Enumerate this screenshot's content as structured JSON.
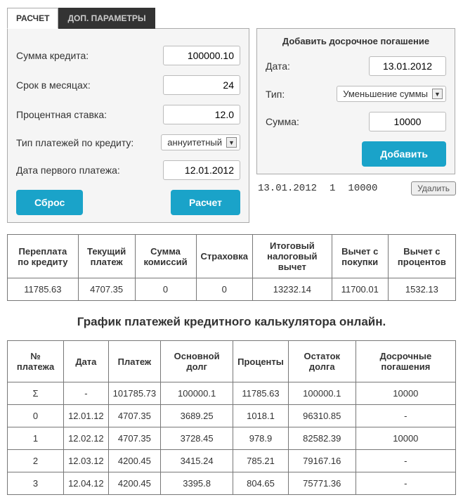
{
  "tabs": {
    "calc": "РАСЧЕТ",
    "extra": "ДОП. ПАРАМЕТРЫ"
  },
  "left": {
    "sum_label": "Сумма кредита:",
    "sum_value": "100000.10",
    "term_label": "Срок в месяцах:",
    "term_value": "24",
    "rate_label": "Процентная ставка:",
    "rate_value": "12.0",
    "ptype_label": "Тип платежей по кредиту:",
    "ptype_value": "аннуитетный",
    "first_label": "Дата первого платежа:",
    "first_value": "12.01.2012",
    "reset_btn": "Сброс",
    "calc_btn": "Расчет"
  },
  "right": {
    "title": "Добавить досрочное погашение",
    "date_label": "Дата:",
    "date_value": "13.01.2012",
    "type_label": "Тип:",
    "type_value": "Уменьшение суммы",
    "sum_label": "Сумма:",
    "sum_value": "10000",
    "add_btn": "Добавить"
  },
  "prepay_row": {
    "date": "13.01.2012",
    "n": "1",
    "sum": "10000",
    "del": "Удалить"
  },
  "summary": {
    "headers": [
      "Переплата по кредиту",
      "Текущий платеж",
      "Сумма комиссий",
      "Страховка",
      "Итоговый налоговый вычет",
      "Вычет с покупки",
      "Вычет с процентов"
    ],
    "values": [
      "11785.63",
      "4707.35",
      "0",
      "0",
      "13232.14",
      "11700.01",
      "1532.13"
    ]
  },
  "schedule_title": "График платежей кредитного калькулятора онлайн.",
  "schedule": {
    "headers": [
      "№ платежа",
      "Дата",
      "Платеж",
      "Основной долг",
      "Проценты",
      "Остаток долга",
      "Досрочные погашения"
    ],
    "rows": [
      [
        "Σ",
        "-",
        "101785.73",
        "100000.1",
        "11785.63",
        "100000.1",
        "10000"
      ],
      [
        "0",
        "12.01.12",
        "4707.35",
        "3689.25",
        "1018.1",
        "96310.85",
        "-"
      ],
      [
        "1",
        "12.02.12",
        "4707.35",
        "3728.45",
        "978.9",
        "82582.39",
        "10000"
      ],
      [
        "2",
        "12.03.12",
        "4200.45",
        "3415.24",
        "785.21",
        "79167.16",
        "-"
      ],
      [
        "3",
        "12.04.12",
        "4200.45",
        "3395.8",
        "804.65",
        "75771.36",
        "-"
      ]
    ]
  }
}
